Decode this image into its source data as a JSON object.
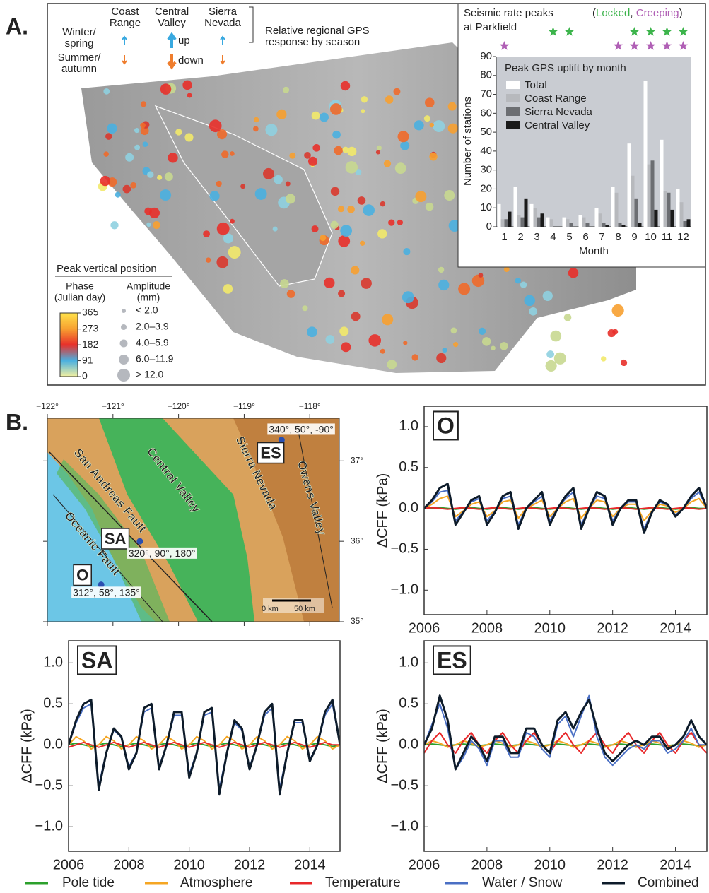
{
  "figure": {
    "panel_a_label": "A.",
    "panel_b_label": "B.",
    "season_legend": {
      "regions": [
        [
          "Coast",
          "Range"
        ],
        [
          "Central",
          "Valley"
        ],
        [
          "Sierra",
          "Nevada"
        ]
      ],
      "winter": [
        "Winter/",
        "spring"
      ],
      "summer": [
        "Summer/",
        "autumn"
      ],
      "up": "up",
      "down": "down",
      "caption": [
        "Relative regional GPS",
        "response by season"
      ]
    },
    "phase_legend": {
      "title": "Peak vertical position",
      "phase_title": [
        "Phase",
        "(Julian day)"
      ],
      "amplitude_title": [
        "Amplitude",
        "(mm)"
      ],
      "colorbar_lim": [
        0,
        365
      ],
      "colorbar_ticks": [
        365,
        273,
        182,
        91,
        0
      ],
      "amplitude_classes": [
        "< 2.0",
        "2.0–3.9",
        "4.0–5.9",
        "6.0–11.9",
        "> 12.0"
      ]
    },
    "map": {
      "xlim": [
        -122,
        -117.55
      ],
      "ylim": [
        35,
        37.53
      ],
      "xticks": [
        {
          "value": -122,
          "label": "−122°"
        },
        {
          "value": -121,
          "label": "−121°"
        },
        {
          "value": -120,
          "label": "−120°"
        },
        {
          "value": -119,
          "label": "−119°"
        },
        {
          "value": -118,
          "label": "−118°"
        }
      ],
      "yticks": [
        {
          "value": 35,
          "label": "35°"
        },
        {
          "value": 36,
          "label": "36°"
        },
        {
          "value": 37,
          "label": "37°"
        }
      ],
      "region_labels": [
        "Central Valley",
        "San Andreas Fault",
        "Oceanic Fault",
        "Sierra Nevada",
        "Owens Valley"
      ],
      "scale_labels": [
        "0 km",
        "50 km"
      ],
      "stations": [
        {
          "label": "ES",
          "lon": -118.43,
          "lat": 37.26,
          "mechanism": "340°, 50°, -90°"
        },
        {
          "label": "SA",
          "lon": -120.59,
          "lat": 36.0,
          "mechanism": "320°, 90°, 180°"
        },
        {
          "label": "O",
          "lon": -121.18,
          "lat": 35.46,
          "mechanism": "312°, 58°, 135°"
        }
      ]
    }
  },
  "chart_data": [
    {
      "type": "bar",
      "title": "Peak GPS uplift by month",
      "seismic_title": [
        "Seismic rate peaks",
        "at Parkfield"
      ],
      "seismic_legend": [
        "(",
        "Locked",
        ", ",
        "Creeping",
        ")"
      ],
      "locked_months": [
        4,
        5,
        9,
        10,
        11,
        12
      ],
      "creeping_months": [
        1,
        8,
        9,
        10,
        11,
        12
      ],
      "locked_color": "#3cb44b",
      "creeping_color": "#b05fb5",
      "categories": [
        "1",
        "2",
        "3",
        "4",
        "5",
        "6",
        "7",
        "8",
        "9",
        "10",
        "11",
        "12"
      ],
      "xlabel": "Month",
      "ylabel": "Number of stations",
      "ylim": [
        0,
        90
      ],
      "yticks": [
        0,
        10,
        20,
        30,
        40,
        50,
        60,
        70,
        80,
        90
      ],
      "series": [
        {
          "name": "Total",
          "color": "#ffffff",
          "values": [
            12,
            21,
            12,
            5,
            5,
            6,
            10,
            21,
            44,
            77,
            46,
            20
          ]
        },
        {
          "name": "Coast Range",
          "color": "#b7b9bd",
          "values": [
            4,
            6,
            10,
            4,
            4,
            5,
            7,
            18,
            27,
            33,
            19,
            13
          ]
        },
        {
          "name": "Sierra Nevada",
          "color": "#6c6e72",
          "values": [
            4,
            5,
            5,
            0,
            2,
            2,
            2,
            2,
            15,
            35,
            18,
            3
          ]
        },
        {
          "name": "Central Valley",
          "color": "#1a1a1a",
          "values": [
            8,
            15,
            7,
            0,
            0,
            0,
            1,
            1,
            2,
            9,
            9,
            4
          ]
        }
      ]
    },
    {
      "type": "line",
      "panel_label": "O",
      "ylabel": "ΔCFF (kPa)",
      "x": [
        2006,
        2006.25,
        2006.5,
        2006.75,
        2007,
        2007.25,
        2007.5,
        2007.75,
        2008,
        2008.25,
        2008.5,
        2008.75,
        2009,
        2009.25,
        2009.5,
        2009.75,
        2010,
        2010.25,
        2010.5,
        2010.75,
        2011,
        2011.25,
        2011.5,
        2011.75,
        2012,
        2012.25,
        2012.5,
        2012.75,
        2013,
        2013.25,
        2013.5,
        2013.75,
        2014,
        2014.25,
        2014.5,
        2014.75,
        2015
      ],
      "xlim": [
        2006,
        2015
      ],
      "xticks": [
        2006,
        2008,
        2010,
        2012,
        2014
      ],
      "ylim": [
        -1.3,
        1.25
      ],
      "yticks": [
        {
          "value": -1,
          "label": "−1.0"
        },
        {
          "value": -0.5,
          "label": "−0.5"
        },
        {
          "value": 0,
          "label": "0.0"
        },
        {
          "value": 0.5,
          "label": "0.5"
        },
        {
          "value": 1,
          "label": "1.0"
        }
      ],
      "series": [
        {
          "name": "Pole tide",
          "color": "#2ca02c",
          "values": [
            0,
            0,
            0.01,
            0,
            -0.01,
            0,
            0.01,
            0,
            -0.01,
            0,
            0.01,
            0,
            -0.01,
            0,
            0.01,
            0,
            -0.01,
            0,
            0.01,
            0,
            -0.01,
            0,
            0.01,
            0,
            -0.01,
            0,
            0.01,
            0,
            -0.01,
            0,
            0.01,
            0,
            -0.01,
            0,
            0.01,
            0,
            0
          ]
        },
        {
          "name": "Atmosphere",
          "color": "#f5a623",
          "values": [
            0,
            0.05,
            0.12,
            0.15,
            -0.1,
            -0.03,
            0.05,
            0.08,
            -0.1,
            -0.03,
            0.08,
            0.1,
            -0.12,
            0,
            0.05,
            0.1,
            -0.1,
            0,
            0.08,
            0.12,
            -0.12,
            0,
            0.1,
            0.08,
            -0.1,
            0,
            0.05,
            0.05,
            -0.15,
            -0.03,
            0.05,
            0.03,
            -0.05,
            0,
            0.08,
            0.12,
            0
          ]
        },
        {
          "name": "Temperature",
          "color": "#e8282a",
          "values": [
            0,
            0.01,
            0,
            -0.01,
            0,
            0.01,
            0,
            -0.01,
            0,
            0.01,
            0,
            -0.01,
            0,
            0.01,
            0,
            -0.01,
            0,
            0.01,
            0,
            -0.01,
            0,
            0.01,
            0,
            -0.01,
            0,
            0.01,
            0,
            -0.01,
            0,
            0.01,
            0,
            -0.01,
            0,
            0.01,
            0,
            -0.01,
            0
          ]
        },
        {
          "name": "Water / Snow",
          "color": "#4a6fc4",
          "values": [
            0,
            0.08,
            0.2,
            0.22,
            -0.15,
            -0.04,
            0.08,
            0.12,
            -0.15,
            -0.04,
            0.12,
            0.15,
            -0.2,
            0,
            0.08,
            0.15,
            -0.15,
            0,
            0.12,
            0.2,
            -0.2,
            0,
            0.15,
            0.12,
            -0.15,
            0,
            0.08,
            0.08,
            -0.25,
            -0.04,
            0.08,
            0.04,
            -0.08,
            0,
            0.12,
            0.2,
            0
          ]
        },
        {
          "name": "Combined",
          "color": "#0d1b2a",
          "values": [
            0,
            0.1,
            0.25,
            0.3,
            -0.2,
            -0.05,
            0.1,
            0.15,
            -0.2,
            -0.05,
            0.15,
            0.2,
            -0.25,
            0,
            0.1,
            0.2,
            -0.2,
            0,
            0.15,
            0.25,
            -0.25,
            0,
            0.2,
            0.15,
            -0.2,
            0,
            0.1,
            0.1,
            -0.3,
            -0.05,
            0.1,
            0.05,
            -0.1,
            0,
            0.15,
            0.25,
            0
          ]
        }
      ]
    },
    {
      "type": "line",
      "panel_label": "SA",
      "ylabel": "ΔCFF (kPa)",
      "x": [
        2006,
        2006.25,
        2006.5,
        2006.75,
        2007,
        2007.25,
        2007.5,
        2007.75,
        2008,
        2008.25,
        2008.5,
        2008.75,
        2009,
        2009.25,
        2009.5,
        2009.75,
        2010,
        2010.25,
        2010.5,
        2010.75,
        2011,
        2011.25,
        2011.5,
        2011.75,
        2012,
        2012.25,
        2012.5,
        2012.75,
        2013,
        2013.25,
        2013.5,
        2013.75,
        2014,
        2014.25,
        2014.5,
        2014.75,
        2015
      ],
      "xlim": [
        2006,
        2015
      ],
      "xticks": [
        2006,
        2008,
        2010,
        2012,
        2014
      ],
      "ylim": [
        -1.3,
        1.27
      ],
      "yticks": [
        {
          "value": -1,
          "label": "−1.0"
        },
        {
          "value": -0.5,
          "label": "−0.5"
        },
        {
          "value": 0,
          "label": "0.0"
        },
        {
          "value": 0.5,
          "label": "0.5"
        },
        {
          "value": 1,
          "label": "1.0"
        }
      ],
      "series": [
        {
          "color": "#2ca02c",
          "values": [
            0,
            0.02,
            0,
            -0.02,
            0,
            0.02,
            0,
            -0.02,
            0,
            0.02,
            0,
            -0.02,
            0,
            0.02,
            0,
            -0.02,
            0,
            0.02,
            0,
            -0.02,
            0,
            0.02,
            0,
            -0.02,
            0,
            0.02,
            0,
            -0.02,
            0,
            0.02,
            0,
            -0.02,
            0,
            0.02,
            0,
            -0.02,
            0
          ]
        },
        {
          "color": "#f5a623",
          "values": [
            0,
            0.1,
            0.05,
            -0.05,
            0,
            0.1,
            0.05,
            -0.05,
            0,
            0.1,
            0.05,
            -0.05,
            0,
            0.1,
            0.05,
            -0.05,
            0,
            0.1,
            0.05,
            -0.05,
            0,
            0.1,
            0.05,
            -0.05,
            0,
            0.1,
            0.05,
            -0.05,
            0,
            0.1,
            0.05,
            -0.05,
            0,
            0.1,
            0.05,
            -0.05,
            0
          ]
        },
        {
          "color": "#e8282a",
          "values": [
            -0.03,
            0,
            0.03,
            0,
            -0.03,
            0,
            0.03,
            0,
            -0.03,
            0,
            0.03,
            0,
            -0.03,
            0,
            0.03,
            0,
            -0.03,
            0,
            0.03,
            0,
            -0.03,
            0,
            0.03,
            0,
            -0.03,
            0,
            0.03,
            0,
            -0.03,
            0,
            0.03,
            0,
            -0.03,
            0,
            0.03,
            0,
            0
          ]
        },
        {
          "color": "#4a6fc4",
          "values": [
            0,
            0.27,
            0.45,
            0.5,
            -0.5,
            -0.09,
            0.18,
            0.09,
            -0.27,
            -0.09,
            0.4,
            0.45,
            -0.27,
            0,
            0.36,
            0.36,
            -0.36,
            -0.09,
            0.36,
            0.4,
            -0.54,
            -0.09,
            0.27,
            0.18,
            -0.27,
            0,
            0.36,
            0.45,
            -0.54,
            -0.09,
            0.27,
            0.27,
            -0.18,
            0,
            0.36,
            0.5,
            0
          ]
        },
        {
          "color": "#0d1b2a",
          "values": [
            0,
            0.3,
            0.5,
            0.55,
            -0.55,
            -0.1,
            0.2,
            0.1,
            -0.3,
            -0.1,
            0.45,
            0.5,
            -0.3,
            0,
            0.4,
            0.4,
            -0.4,
            -0.1,
            0.4,
            0.45,
            -0.6,
            -0.1,
            0.3,
            0.2,
            -0.3,
            0,
            0.4,
            0.5,
            -0.6,
            -0.1,
            0.3,
            0.3,
            -0.2,
            0,
            0.4,
            0.55,
            0
          ]
        }
      ]
    },
    {
      "type": "line",
      "panel_label": "ES",
      "ylabel": "ΔCFF (kPa)",
      "x": [
        2006,
        2006.25,
        2006.5,
        2006.75,
        2007,
        2007.25,
        2007.5,
        2007.75,
        2008,
        2008.25,
        2008.5,
        2008.75,
        2009,
        2009.25,
        2009.5,
        2009.75,
        2010,
        2010.25,
        2010.5,
        2010.75,
        2011,
        2011.25,
        2011.5,
        2011.75,
        2012,
        2012.25,
        2012.5,
        2012.75,
        2013,
        2013.25,
        2013.5,
        2013.75,
        2014,
        2014.25,
        2014.5,
        2014.75,
        2015
      ],
      "xlim": [
        2006,
        2015
      ],
      "xticks": [
        2006,
        2008,
        2010,
        2012,
        2014
      ],
      "ylim": [
        -1.3,
        1.27
      ],
      "yticks": [
        {
          "value": -1,
          "label": "−1.0"
        },
        {
          "value": -0.5,
          "label": "−0.5"
        },
        {
          "value": 0,
          "label": "0.0"
        },
        {
          "value": 0.5,
          "label": "0.5"
        },
        {
          "value": 1,
          "label": "1.0"
        }
      ],
      "series": [
        {
          "color": "#2ca02c",
          "values": [
            0,
            0.01,
            0,
            -0.01,
            0,
            0.01,
            0,
            -0.01,
            0,
            0.01,
            0,
            -0.01,
            0,
            0.01,
            0,
            -0.01,
            0,
            0.01,
            0,
            -0.01,
            0,
            0.01,
            0,
            -0.01,
            0,
            0.01,
            0,
            -0.01,
            0,
            0.01,
            0,
            -0.01,
            0,
            0.01,
            0,
            -0.01,
            0
          ]
        },
        {
          "color": "#f5a623",
          "values": [
            0,
            0.05,
            0.02,
            -0.03,
            0,
            0.05,
            0.02,
            -0.03,
            0,
            0.05,
            0.02,
            -0.03,
            0,
            0.05,
            0.02,
            -0.03,
            0,
            0.05,
            0.02,
            -0.03,
            0,
            0.05,
            0.02,
            -0.03,
            0,
            0.05,
            0.02,
            -0.03,
            0,
            0.05,
            0.02,
            -0.03,
            0,
            0.05,
            0.02,
            -0.03,
            0
          ]
        },
        {
          "color": "#e8282a",
          "values": [
            -0.1,
            0.05,
            0.15,
            0,
            -0.1,
            0.05,
            0.15,
            0,
            -0.1,
            0.05,
            0.15,
            0,
            -0.1,
            0.05,
            0.15,
            0,
            -0.1,
            0.05,
            0.15,
            0,
            -0.1,
            0.05,
            0.15,
            0,
            -0.1,
            0.05,
            0.15,
            0,
            -0.1,
            0.05,
            0.15,
            0,
            -0.1,
            0.05,
            0.15,
            0,
            -0.1
          ]
        },
        {
          "color": "#4a6fc4",
          "values": [
            0,
            0.25,
            0.5,
            0.2,
            -0.3,
            -0.15,
            0.05,
            -0.05,
            -0.25,
            0.05,
            0.05,
            -0.15,
            -0.15,
            0.15,
            0.1,
            -0.05,
            -0.15,
            0.25,
            0.35,
            0.1,
            0.35,
            0.6,
            0.1,
            -0.15,
            -0.25,
            -0.15,
            -0.05,
            0,
            -0.05,
            0.05,
            0.05,
            -0.1,
            -0.05,
            0.05,
            0.2,
            0,
            0
          ]
        },
        {
          "color": "#0d1b2a",
          "values": [
            0,
            0.2,
            0.6,
            0.3,
            -0.3,
            -0.1,
            0.1,
            0,
            -0.2,
            0.1,
            0.1,
            -0.1,
            -0.1,
            0.2,
            0.2,
            0,
            -0.1,
            0.3,
            0.4,
            0.2,
            0.4,
            0.55,
            0.2,
            -0.1,
            -0.2,
            -0.1,
            0,
            0.05,
            0,
            0.1,
            0.1,
            -0.05,
            0,
            0.1,
            0.3,
            0.1,
            0
          ]
        }
      ]
    }
  ]
}
